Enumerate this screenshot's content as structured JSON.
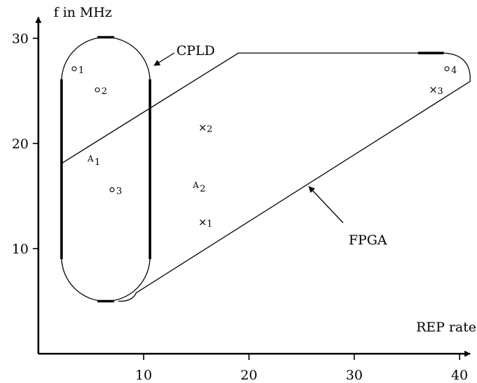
{
  "chart_data": {
    "type": "scatter",
    "title": "",
    "xlabel": "REP rate",
    "ylabel": "f in MHz",
    "xlim": [
      0,
      41
    ],
    "ylim": [
      3.5,
      32
    ],
    "x_ticks": [
      10,
      20,
      30,
      40
    ],
    "y_ticks": [
      10,
      20,
      30
    ],
    "grid": false,
    "points": [
      {
        "marker": "o",
        "label": "1",
        "x": 3.4,
        "y": 27.1
      },
      {
        "marker": "o",
        "label": "2",
        "x": 5.6,
        "y": 25.1
      },
      {
        "marker": "o",
        "label": "3",
        "x": 7.0,
        "y": 15.6
      },
      {
        "marker": "o",
        "label": "4",
        "x": 38.8,
        "y": 27.1
      },
      {
        "marker": "x",
        "label": "1",
        "x": 15.6,
        "y": 12.5
      },
      {
        "marker": "x",
        "label": "2",
        "x": 15.6,
        "y": 21.5
      },
      {
        "marker": "x",
        "label": "3",
        "x": 37.5,
        "y": 25.1
      },
      {
        "marker": "A",
        "label": "1",
        "x": 5.0,
        "y": 18.6
      },
      {
        "marker": "A",
        "label": "2",
        "x": 15.0,
        "y": 16.1
      }
    ],
    "regions": [
      {
        "name": "CPLD",
        "shape": "rounded-rect",
        "x_range": [
          2.2,
          10.6
        ],
        "y_range": [
          5.0,
          30.1
        ]
      },
      {
        "name": "FPGA",
        "shape": "polygon",
        "vertices": [
          [
            2.2,
            18.1
          ],
          [
            19.0,
            28.6
          ],
          [
            38.5,
            28.6
          ],
          [
            41,
            26.4
          ],
          [
            41,
            25.9
          ],
          [
            9.3,
            5.8
          ],
          [
            7.6,
            5.0
          ]
        ]
      }
    ],
    "annotations": [
      {
        "text": "CPLD",
        "points_to": "CPLD"
      },
      {
        "text": "FPGA",
        "points_to": "FPGA"
      }
    ]
  }
}
